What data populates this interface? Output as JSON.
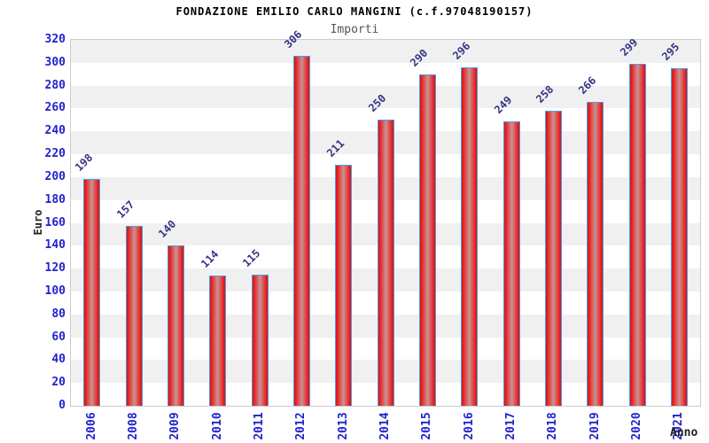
{
  "chart_data": {
    "type": "bar",
    "title": "FONDAZIONE EMILIO CARLO MANGINI (c.f.97048190157)",
    "subtitle": "Importi",
    "xlabel": "Anno",
    "ylabel": "Euro",
    "categories": [
      "2006",
      "2008",
      "2009",
      "2010",
      "2011",
      "2012",
      "2013",
      "2014",
      "2015",
      "2016",
      "2017",
      "2018",
      "2019",
      "2020",
      "2021"
    ],
    "values": [
      198,
      157,
      140,
      114,
      115,
      306,
      211,
      250,
      290,
      296,
      249,
      258,
      266,
      299,
      295
    ],
    "ylim": [
      0,
      320
    ],
    "ytick_step": 20,
    "grid": "alternating-horizontal-bands",
    "legend_position": "none",
    "colors": {
      "title": "#000000",
      "subtitle": "#555555",
      "axis_title": "#222222",
      "tick_label": "#2222cc",
      "value_label": "#333388",
      "bar_edge": "#c41a1a",
      "bar_bright": "#ee2222",
      "bar_center": "#c79494",
      "bar_border": "#4d9be6",
      "band_gray": "#f0f0f0",
      "band_white": "#ffffff",
      "plot_border": "#cccccc"
    }
  }
}
